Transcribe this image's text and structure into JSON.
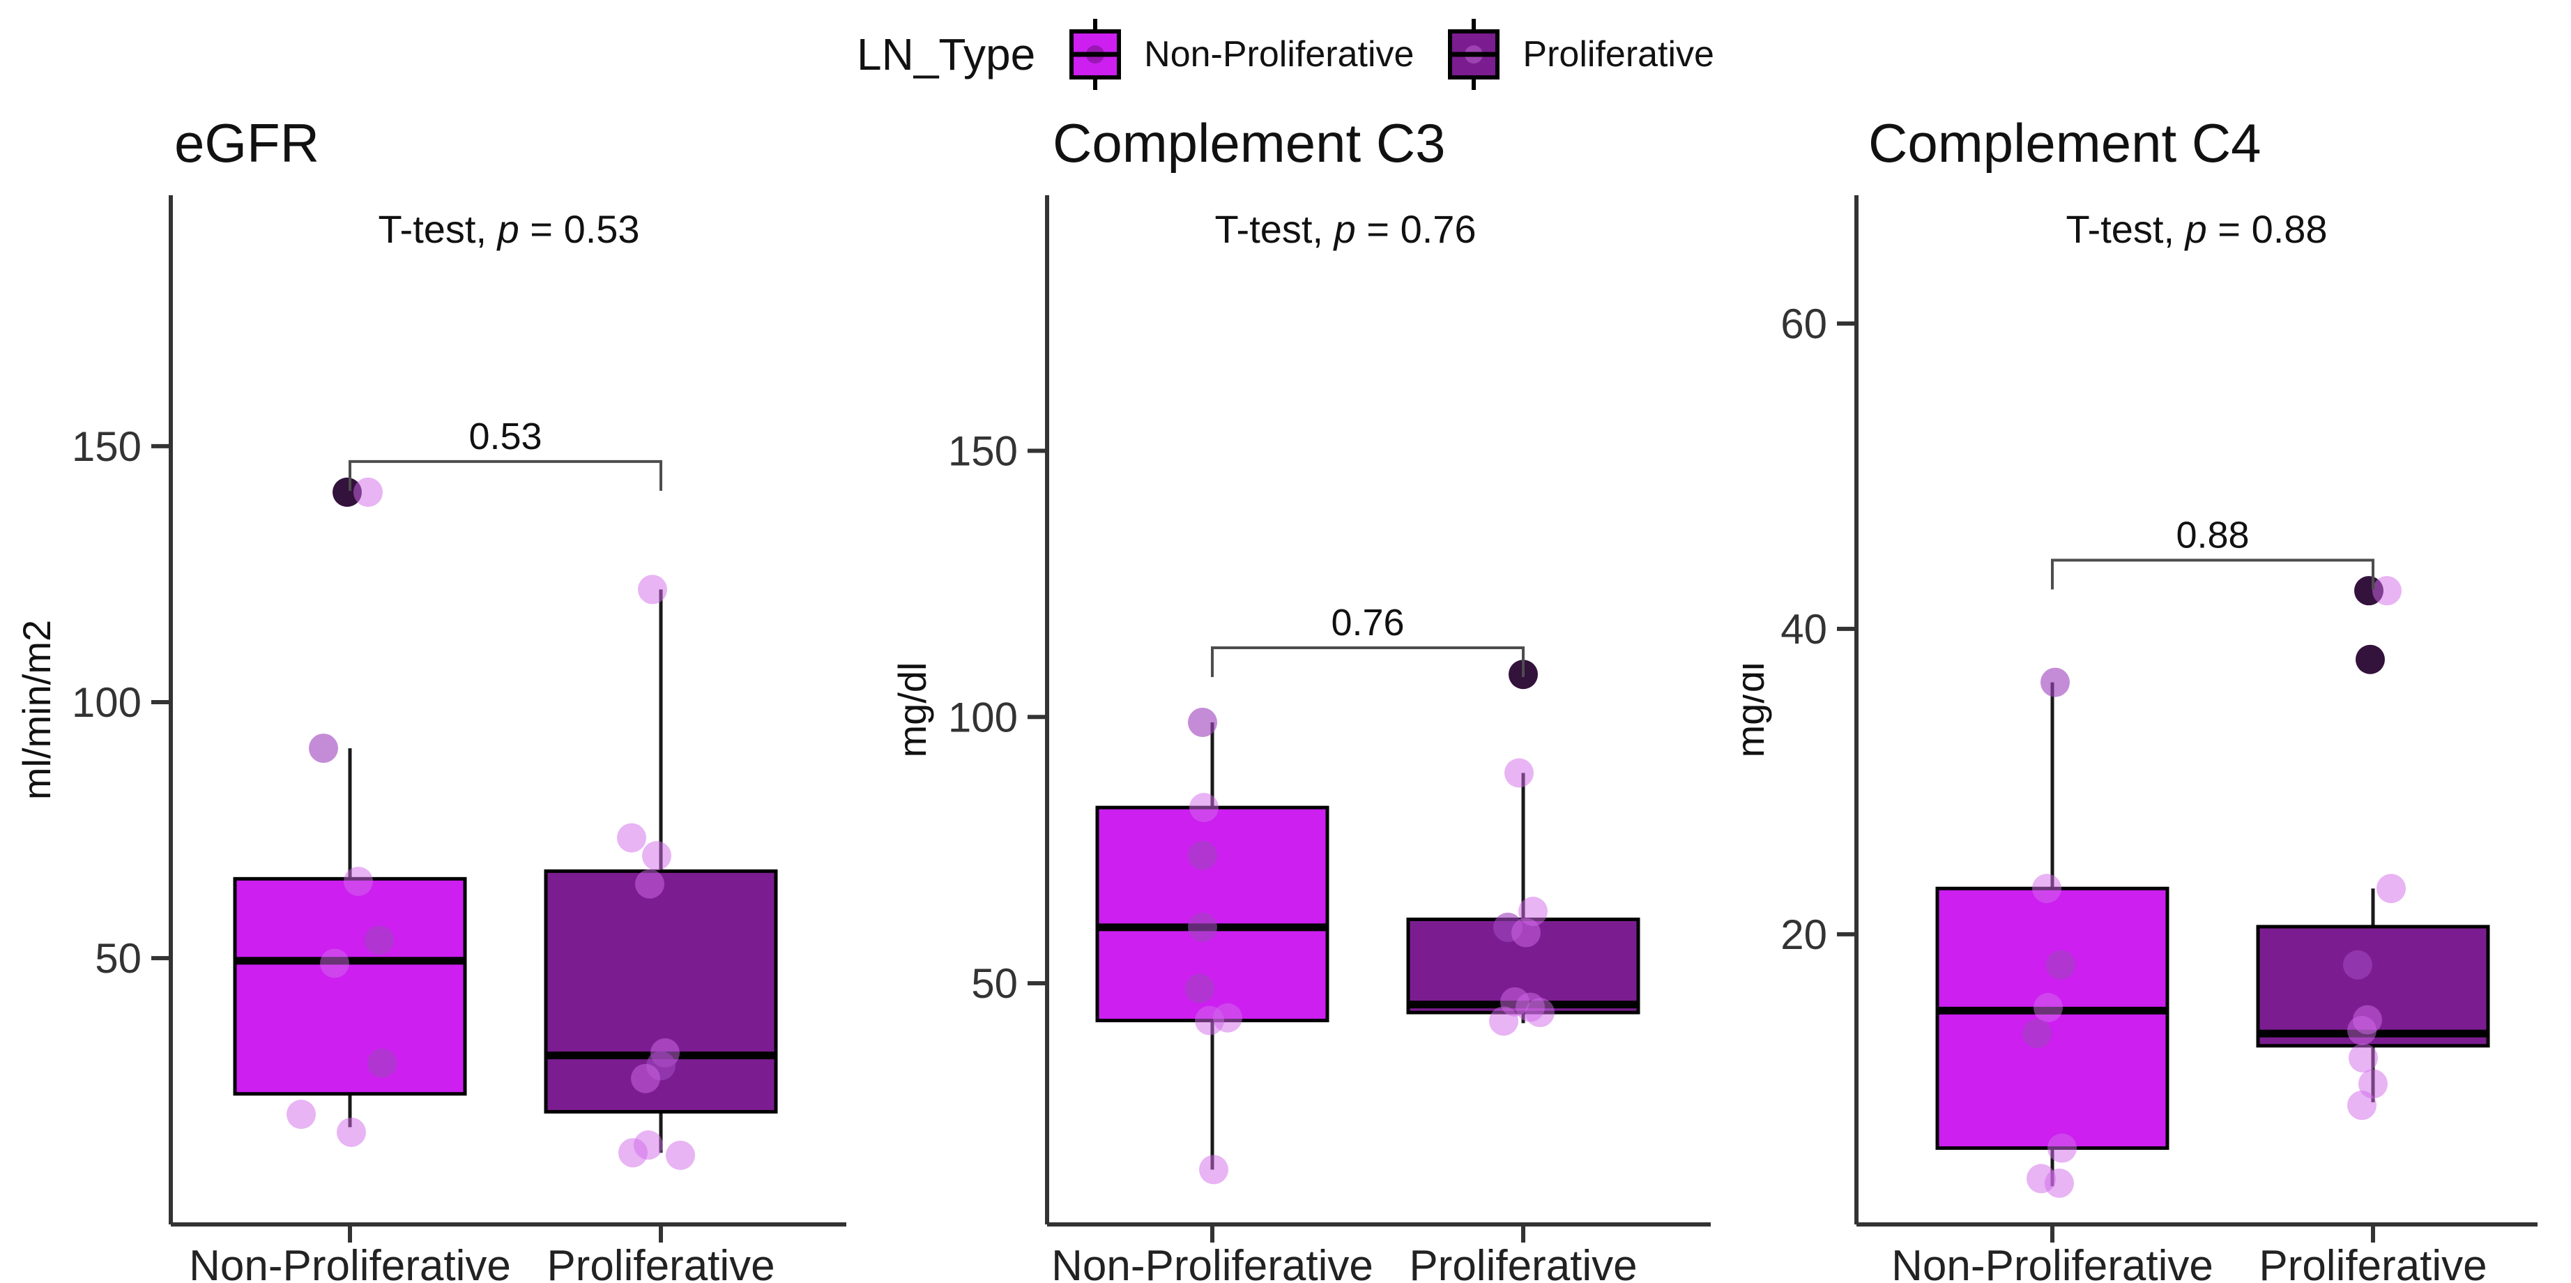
{
  "legend": {
    "title": "LN_Type",
    "items": [
      {
        "label": "Non-Proliferative",
        "color": "#CC1FF0"
      },
      {
        "label": "Proliferative",
        "color": "#7B1D90"
      }
    ]
  },
  "point_tones": {
    "light": "rgba(209,106,233,0.5)",
    "medium": "rgba(160,70,190,0.62)",
    "dark": "rgba(40,5,50,0.95)"
  },
  "axis_colors": {
    "line": "#333333",
    "tick_text": "#333333",
    "bracket": "#4d4d4d"
  },
  "chart_data": [
    {
      "type": "boxplot",
      "title": "eGFR",
      "subtitle_prefix": "T-test, ",
      "subtitle_pvar": "p",
      "subtitle_rest": " = 0.53",
      "ylabel": "ml/min/m2",
      "ylim": [
        -2,
        199
      ],
      "yticks": [
        50,
        100,
        150
      ],
      "categories": [
        "Non-Proliferative",
        "Proliferative"
      ],
      "bracket": {
        "value": 147,
        "label": "0.53"
      },
      "series": [
        {
          "name": "Non-Proliferative",
          "fill": "#CC1FF0",
          "box": {
            "q1": 23.5,
            "median": 49.5,
            "q3": 65.5,
            "whisker_low": 17,
            "whisker_high": 91
          },
          "points": [
            {
              "v": 141,
              "dx": -4,
              "tone": "dark"
            },
            {
              "v": 141,
              "dx": 26,
              "tone": "light"
            },
            {
              "v": 91,
              "dx": -38,
              "tone": "medium"
            },
            {
              "v": 65,
              "dx": 12,
              "tone": "light"
            },
            {
              "v": 53.5,
              "dx": 42,
              "tone": "medium"
            },
            {
              "v": 49,
              "dx": -22,
              "tone": "light"
            },
            {
              "v": 29.5,
              "dx": 46,
              "tone": "medium"
            },
            {
              "v": 19.5,
              "dx": -70,
              "tone": "light"
            },
            {
              "v": 16,
              "dx": 2,
              "tone": "light"
            }
          ]
        },
        {
          "name": "Proliferative",
          "fill": "#7B1D90",
          "box": {
            "q1": 20,
            "median": 31,
            "q3": 67,
            "whisker_low": 12,
            "whisker_high": 122
          },
          "points": [
            {
              "v": 122,
              "dx": -12,
              "tone": "light"
            },
            {
              "v": 73.5,
              "dx": -42,
              "tone": "light"
            },
            {
              "v": 70,
              "dx": -6,
              "tone": "light"
            },
            {
              "v": 64.5,
              "dx": -16,
              "tone": "light"
            },
            {
              "v": 31.5,
              "dx": 6,
              "tone": "light"
            },
            {
              "v": 29,
              "dx": 0,
              "tone": "medium"
            },
            {
              "v": 26.5,
              "dx": -22,
              "tone": "light"
            },
            {
              "v": 13.5,
              "dx": -18,
              "tone": "light"
            },
            {
              "v": 12,
              "dx": -40,
              "tone": "light"
            },
            {
              "v": 11.5,
              "dx": 28,
              "tone": "light"
            }
          ]
        }
      ]
    },
    {
      "type": "boxplot",
      "title": "Complement C3",
      "subtitle_prefix": "T-test, ",
      "subtitle_pvar": "p",
      "subtitle_rest": " = 0.76",
      "ylabel": "mg/dl",
      "ylim": [
        4.7,
        198
      ],
      "yticks": [
        50,
        100,
        150
      ],
      "categories": [
        "Non-Proliferative",
        "Proliferative"
      ],
      "bracket": {
        "value": 113,
        "label": "0.76"
      },
      "series": [
        {
          "name": "Non-Proliferative",
          "fill": "#CC1FF0",
          "box": {
            "q1": 43,
            "median": 60.5,
            "q3": 83,
            "whisker_low": 15,
            "whisker_high": 99
          },
          "points": [
            {
              "v": 99,
              "dx": -14,
              "tone": "medium"
            },
            {
              "v": 83,
              "dx": -12,
              "tone": "light"
            },
            {
              "v": 74,
              "dx": -14,
              "tone": "medium"
            },
            {
              "v": 60.5,
              "dx": -14,
              "tone": "medium"
            },
            {
              "v": 49,
              "dx": -18,
              "tone": "medium"
            },
            {
              "v": 43.5,
              "dx": 22,
              "tone": "light"
            },
            {
              "v": 43,
              "dx": -4,
              "tone": "light"
            },
            {
              "v": 15,
              "dx": 2,
              "tone": "light"
            }
          ]
        },
        {
          "name": "Proliferative",
          "fill": "#7B1D90",
          "box": {
            "q1": 44.5,
            "median": 46,
            "q3": 62,
            "whisker_low": 42.5,
            "whisker_high": 89.5
          },
          "points": [
            {
              "v": 108,
              "dx": 0,
              "tone": "dark"
            },
            {
              "v": 89.5,
              "dx": -6,
              "tone": "light"
            },
            {
              "v": 63.5,
              "dx": 14,
              "tone": "light"
            },
            {
              "v": 60.5,
              "dx": -22,
              "tone": "medium"
            },
            {
              "v": 59.5,
              "dx": 4,
              "tone": "light"
            },
            {
              "v": 46.5,
              "dx": -12,
              "tone": "light"
            },
            {
              "v": 45.5,
              "dx": 10,
              "tone": "light"
            },
            {
              "v": 44.5,
              "dx": 24,
              "tone": "light"
            },
            {
              "v": 42.9,
              "dx": -28,
              "tone": "light"
            }
          ]
        }
      ]
    },
    {
      "type": "boxplot",
      "title": "Complement C4",
      "subtitle_prefix": "T-test, ",
      "subtitle_pvar": "p",
      "subtitle_rest": " = 0.88",
      "ylabel": "mg/dl",
      "ylim": [
        1,
        68.4
      ],
      "yticks": [
        20,
        40,
        60
      ],
      "categories": [
        "Non-Proliferative",
        "Proliferative"
      ],
      "bracket": {
        "value": 44.5,
        "label": "0.88"
      },
      "series": [
        {
          "name": "Non-Proliferative",
          "fill": "#CC1FF0",
          "box": {
            "q1": 6,
            "median": 15,
            "q3": 23,
            "whisker_low": 3.5,
            "whisker_high": 36.5
          },
          "points": [
            {
              "v": 36.5,
              "dx": 4,
              "tone": "medium"
            },
            {
              "v": 23,
              "dx": -8,
              "tone": "light"
            },
            {
              "v": 18,
              "dx": 12,
              "tone": "medium"
            },
            {
              "v": 15.2,
              "dx": -6,
              "tone": "light"
            },
            {
              "v": 13.5,
              "dx": -22,
              "tone": "medium"
            },
            {
              "v": 6,
              "dx": 14,
              "tone": "light"
            },
            {
              "v": 4,
              "dx": -16,
              "tone": "light"
            },
            {
              "v": 3.7,
              "dx": 10,
              "tone": "light"
            }
          ]
        },
        {
          "name": "Proliferative",
          "fill": "#7B1D90",
          "box": {
            "q1": 12.7,
            "median": 13.5,
            "q3": 20.5,
            "whisker_low": 9,
            "whisker_high": 23
          },
          "points": [
            {
              "v": 42.5,
              "dx": -6,
              "tone": "dark"
            },
            {
              "v": 42.5,
              "dx": 20,
              "tone": "light"
            },
            {
              "v": 38,
              "dx": -4,
              "tone": "dark"
            },
            {
              "v": 23,
              "dx": 26,
              "tone": "light"
            },
            {
              "v": 18,
              "dx": -22,
              "tone": "medium"
            },
            {
              "v": 14.4,
              "dx": -8,
              "tone": "light"
            },
            {
              "v": 13.7,
              "dx": -16,
              "tone": "light"
            },
            {
              "v": 11.9,
              "dx": -14,
              "tone": "light"
            },
            {
              "v": 10.2,
              "dx": 0,
              "tone": "light"
            },
            {
              "v": 8.8,
              "dx": -16,
              "tone": "light"
            }
          ]
        }
      ]
    }
  ]
}
